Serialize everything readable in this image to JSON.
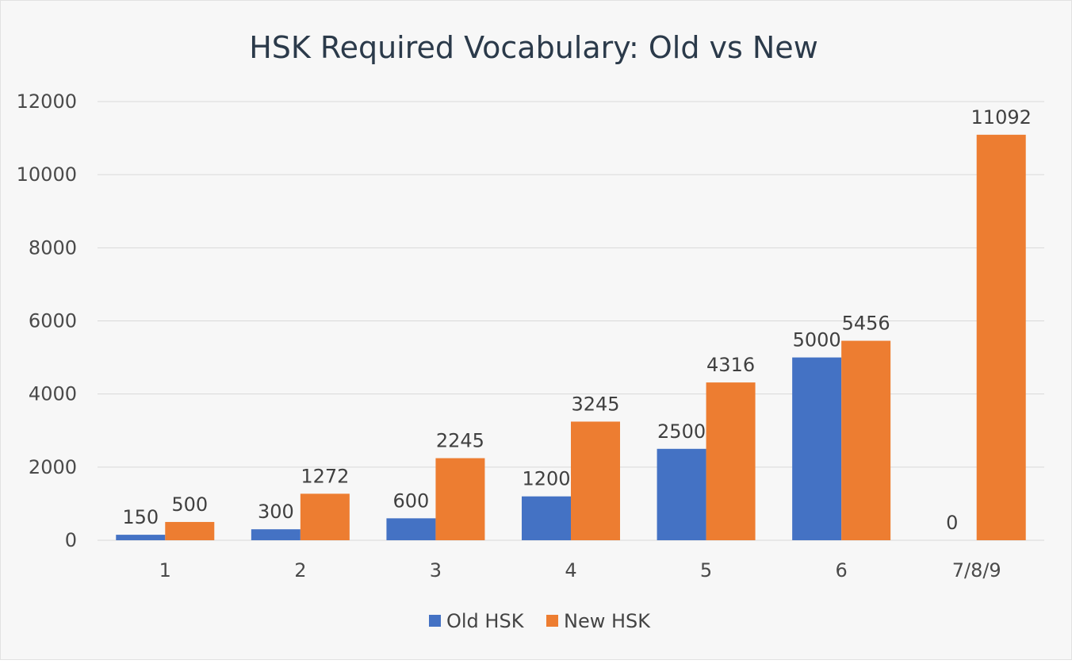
{
  "chart_data": {
    "type": "bar",
    "title": "HSK Required Vocabulary: Old vs New",
    "xlabel": "",
    "ylabel": "",
    "categories": [
      "1",
      "2",
      "3",
      "4",
      "5",
      "6",
      "7/8/9"
    ],
    "series": [
      {
        "name": "Old HSK",
        "values": [
          150,
          300,
          600,
          1200,
          2500,
          5000,
          0
        ],
        "color": "#4472c4"
      },
      {
        "name": "New HSK",
        "values": [
          500,
          1272,
          2245,
          3245,
          4316,
          5456,
          11092
        ],
        "color": "#ed7d31"
      }
    ],
    "ylim": [
      0,
      12000
    ],
    "yticks": [
      0,
      2000,
      4000,
      6000,
      8000,
      10000,
      12000
    ],
    "grid": true,
    "legend": "bottom",
    "data_labels": true
  }
}
